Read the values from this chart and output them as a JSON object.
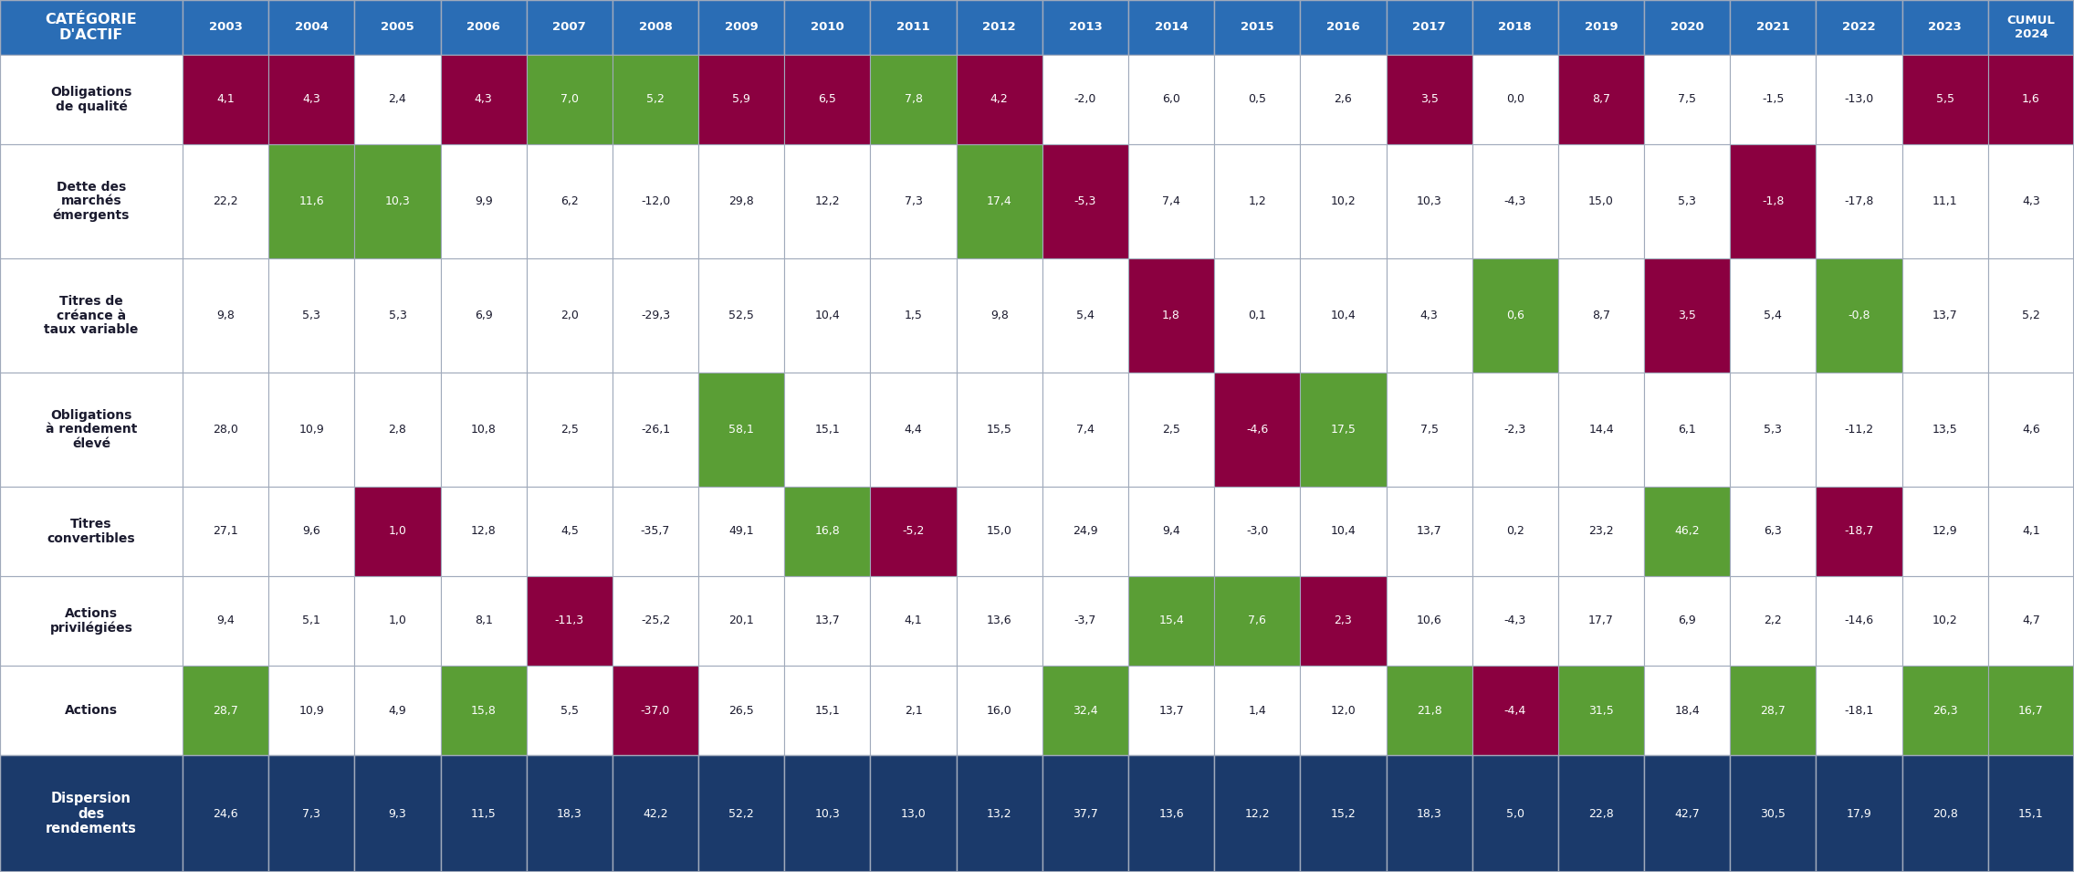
{
  "years": [
    "2003",
    "2004",
    "2005",
    "2006",
    "2007",
    "2008",
    "2009",
    "2010",
    "2011",
    "2012",
    "2013",
    "2014",
    "2015",
    "2016",
    "2017",
    "2018",
    "2019",
    "2020",
    "2021",
    "2022",
    "2023",
    "CUMUL\n2024"
  ],
  "rows": [
    {
      "label": "Obligations\nde qualité",
      "values": [
        4.1,
        4.3,
        2.4,
        4.3,
        7.0,
        5.2,
        5.9,
        6.5,
        7.8,
        4.2,
        -2.0,
        6.0,
        0.5,
        2.6,
        3.5,
        0.0,
        8.7,
        7.5,
        -1.5,
        -13.0,
        5.5,
        1.6
      ],
      "display": [
        "4,1",
        "4,3",
        "2,4",
        "4,3",
        "7,0",
        "5,2",
        "5,9",
        "6,5",
        "7,8",
        "4,2",
        "-2,0",
        "6,0",
        "0,5",
        "2,6",
        "3,5",
        "0,0",
        "8,7",
        "7,5",
        "-1,5",
        "-13,0",
        "5,5",
        "1,6"
      ]
    },
    {
      "label": "Dette des\nmarchés\némergents",
      "values": [
        22.2,
        11.6,
        10.3,
        9.9,
        6.2,
        -12.0,
        29.8,
        12.2,
        7.3,
        17.4,
        -5.3,
        7.4,
        1.2,
        10.2,
        10.3,
        -4.3,
        15.0,
        5.3,
        -1.8,
        -17.8,
        11.1,
        4.3
      ],
      "display": [
        "22,2",
        "11,6",
        "10,3",
        "9,9",
        "6,2",
        "-12,0",
        "29,8",
        "12,2",
        "7,3",
        "17,4",
        "-5,3",
        "7,4",
        "1,2",
        "10,2",
        "10,3",
        "-4,3",
        "15,0",
        "5,3",
        "-1,8",
        "-17,8",
        "11,1",
        "4,3"
      ]
    },
    {
      "label": "Titres de\ncréance à\ntaux variable",
      "values": [
        9.8,
        5.3,
        5.3,
        6.9,
        2.0,
        -29.3,
        52.5,
        10.4,
        1.5,
        9.8,
        5.4,
        1.8,
        0.1,
        10.4,
        4.3,
        0.6,
        8.7,
        3.5,
        5.4,
        -0.8,
        13.7,
        5.2
      ],
      "display": [
        "9,8",
        "5,3",
        "5,3",
        "6,9",
        "2,0",
        "-29,3",
        "52,5",
        "10,4",
        "1,5",
        "9,8",
        "5,4",
        "1,8",
        "0,1",
        "10,4",
        "4,3",
        "0,6",
        "8,7",
        "3,5",
        "5,4",
        "-0,8",
        "13,7",
        "5,2"
      ]
    },
    {
      "label": "Obligations\nà rendement\nélevé",
      "values": [
        28.0,
        10.9,
        2.8,
        10.8,
        2.5,
        -26.1,
        58.1,
        15.1,
        4.4,
        15.5,
        7.4,
        2.5,
        -4.6,
        17.5,
        7.5,
        -2.3,
        14.4,
        6.1,
        5.3,
        -11.2,
        13.5,
        4.6
      ],
      "display": [
        "28,0",
        "10,9",
        "2,8",
        "10,8",
        "2,5",
        "-26,1",
        "58,1",
        "15,1",
        "4,4",
        "15,5",
        "7,4",
        "2,5",
        "-4,6",
        "17,5",
        "7,5",
        "-2,3",
        "14,4",
        "6,1",
        "5,3",
        "-11,2",
        "13,5",
        "4,6"
      ]
    },
    {
      "label": "Titres\nconvertibles",
      "values": [
        27.1,
        9.6,
        1.0,
        12.8,
        4.5,
        -35.7,
        49.1,
        16.8,
        -5.2,
        15.0,
        24.9,
        9.4,
        -3.0,
        10.4,
        13.7,
        0.2,
        23.2,
        46.2,
        6.3,
        -18.7,
        12.9,
        4.1
      ],
      "display": [
        "27,1",
        "9,6",
        "1,0",
        "12,8",
        "4,5",
        "-35,7",
        "49,1",
        "16,8",
        "-5,2",
        "15,0",
        "24,9",
        "9,4",
        "-3,0",
        "10,4",
        "13,7",
        "0,2",
        "23,2",
        "46,2",
        "6,3",
        "-18,7",
        "12,9",
        "4,1"
      ]
    },
    {
      "label": "Actions\nprivilégiées",
      "values": [
        9.4,
        5.1,
        1.0,
        8.1,
        -11.3,
        -25.2,
        20.1,
        13.7,
        4.1,
        13.6,
        -3.7,
        15.4,
        7.6,
        2.3,
        10.6,
        -4.3,
        17.7,
        6.9,
        2.2,
        -14.6,
        10.2,
        4.7
      ],
      "display": [
        "9,4",
        "5,1",
        "1,0",
        "8,1",
        "-11,3",
        "-25,2",
        "20,1",
        "13,7",
        "4,1",
        "13,6",
        "-3,7",
        "15,4",
        "7,6",
        "2,3",
        "10,6",
        "-4,3",
        "17,7",
        "6,9",
        "2,2",
        "-14,6",
        "10,2",
        "4,7"
      ]
    },
    {
      "label": "Actions",
      "values": [
        28.7,
        10.9,
        4.9,
        15.8,
        5.5,
        -37.0,
        26.5,
        15.1,
        2.1,
        16.0,
        32.4,
        13.7,
        1.4,
        12.0,
        21.8,
        -4.4,
        31.5,
        18.4,
        28.7,
        -18.1,
        26.3,
        16.7
      ],
      "display": [
        "28,7",
        "10,9",
        "4,9",
        "15,8",
        "5,5",
        "-37,0",
        "26,5",
        "15,1",
        "2,1",
        "16,0",
        "32,4",
        "13,7",
        "1,4",
        "12,0",
        "21,8",
        "-4,4",
        "31,5",
        "18,4",
        "28,7",
        "-18,1",
        "26,3",
        "16,7"
      ]
    }
  ],
  "dispersion_row": {
    "label": "Dispersion\ndes\nrendements",
    "display": [
      "24,6",
      "7,3",
      "9,3",
      "11,5",
      "18,3",
      "42,2",
      "52,2",
      "10,3",
      "13,0",
      "13,2",
      "37,7",
      "13,6",
      "12,2",
      "15,2",
      "18,3",
      "5,0",
      "22,8",
      "42,7",
      "30,5",
      "17,9",
      "20,8",
      "15,1"
    ]
  },
  "color_best": "#5a9e35",
  "color_worst": "#8b0040",
  "color_header_bg": "#2a6db5",
  "color_dispersion_bg": "#1b3a6b",
  "color_white": "#ffffff",
  "color_dark_text": "#1a1a2e",
  "color_border": "#a0aabb"
}
